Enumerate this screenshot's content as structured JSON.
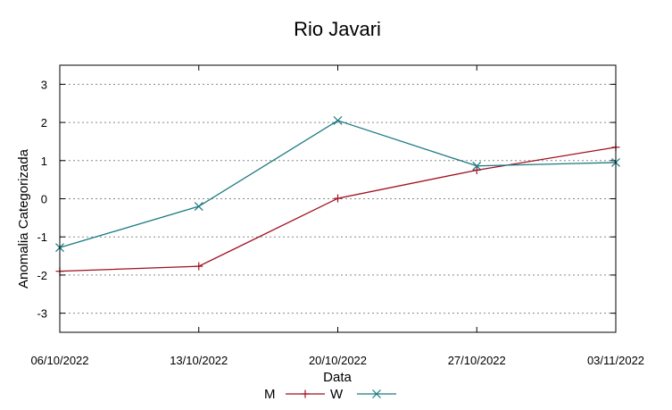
{
  "chart_data": {
    "type": "line",
    "title": "Rio Javari",
    "xlabel": "Data",
    "ylabel": "Anomalia Categorizada",
    "categories": [
      "06/10/2022",
      "13/10/2022",
      "20/10/2022",
      "27/10/2022",
      "03/11/2022"
    ],
    "ylim": [
      -3.5,
      3.5
    ],
    "yticks": [
      -3,
      -2,
      -1,
      0,
      1,
      2,
      3
    ],
    "grid": true,
    "legend": "bottom",
    "series": [
      {
        "name": "M",
        "values": [
          -1.9,
          -1.77,
          0.01,
          0.75,
          1.35
        ],
        "color": "#a01020",
        "marker": "plus"
      },
      {
        "name": "W",
        "values": [
          -1.28,
          -0.2,
          2.05,
          0.86,
          0.95
        ],
        "color": "#1a7a80",
        "marker": "x"
      }
    ]
  }
}
